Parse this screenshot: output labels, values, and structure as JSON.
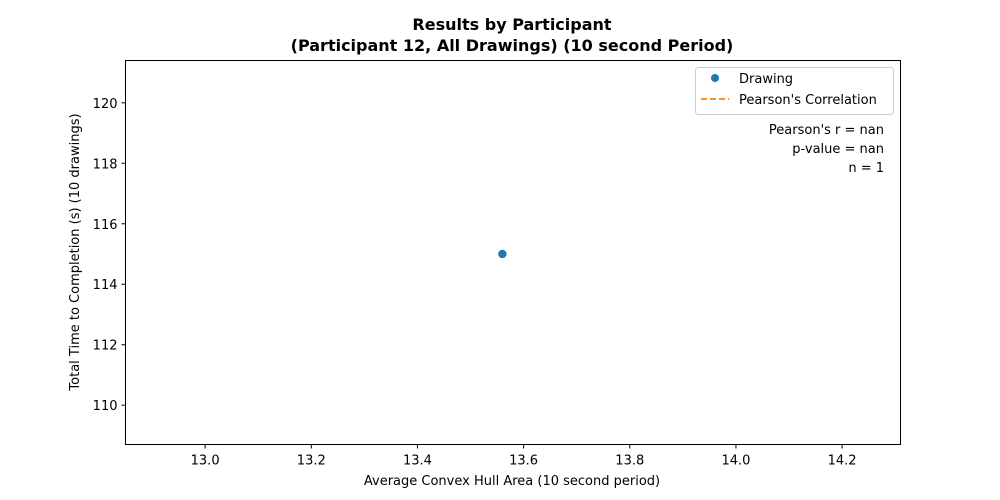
{
  "chart_data": {
    "type": "scatter",
    "title_line1": "Results by Participant",
    "title_line2": "(Participant 12, All Drawings) (10 second Period)",
    "xlabel": "Average Convex Hull Area (10 second period)",
    "ylabel": "Total Time to Completion (s) (10 drawings)",
    "xlim": [
      12.85,
      14.31
    ],
    "ylim": [
      108.7,
      121.4
    ],
    "x_ticks": [
      {
        "value": 13.0,
        "label": "13.0"
      },
      {
        "value": 13.2,
        "label": "13.2"
      },
      {
        "value": 13.4,
        "label": "13.4"
      },
      {
        "value": 13.6,
        "label": "13.6"
      },
      {
        "value": 13.8,
        "label": "13.8"
      },
      {
        "value": 14.0,
        "label": "14.0"
      },
      {
        "value": 14.2,
        "label": "14.2"
      }
    ],
    "y_ticks": [
      {
        "value": 110,
        "label": "110"
      },
      {
        "value": 112,
        "label": "112"
      },
      {
        "value": 114,
        "label": "114"
      },
      {
        "value": 116,
        "label": "116"
      },
      {
        "value": 118,
        "label": "118"
      },
      {
        "value": 120,
        "label": "120"
      }
    ],
    "series": [
      {
        "name": "Drawing",
        "kind": "scatter",
        "color": "#1f77b4",
        "points": [
          {
            "x": 13.56,
            "y": 115.0
          }
        ]
      },
      {
        "name": "Pearson's Correlation",
        "kind": "line",
        "style": "dashed",
        "color": "#ff7f0e",
        "points": []
      }
    ],
    "stats": [
      "Pearson's r = nan",
      "p-value = nan",
      "n = 1"
    ],
    "legend_position": "top-right",
    "grid": false
  }
}
